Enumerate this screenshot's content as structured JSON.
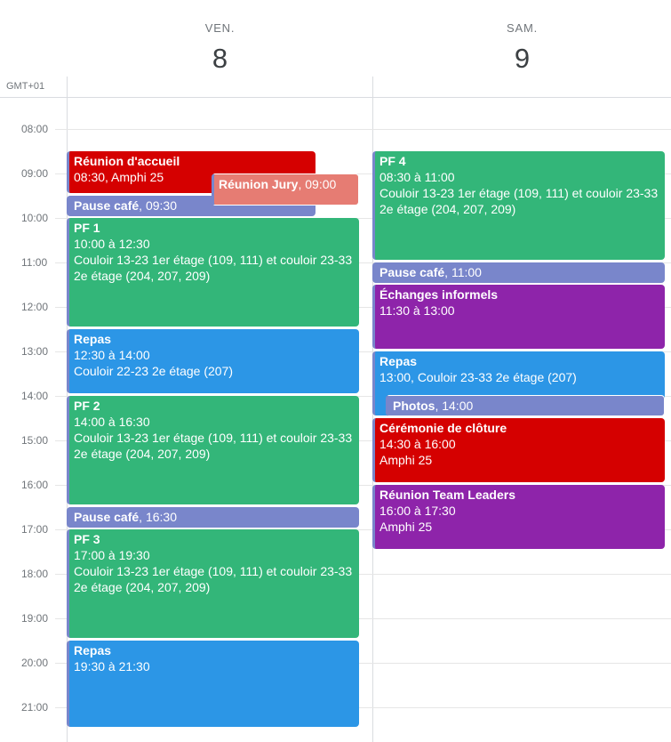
{
  "timezone": "GMT+01",
  "days": [
    {
      "dow": "VEN.",
      "num": "8"
    },
    {
      "dow": "SAM.",
      "num": "9"
    }
  ],
  "hours": [
    "08:00",
    "09:00",
    "10:00",
    "11:00",
    "12:00",
    "13:00",
    "14:00",
    "15:00",
    "16:00",
    "17:00",
    "18:00",
    "19:00",
    "20:00",
    "21:00"
  ],
  "colors": {
    "red": "#d50000",
    "salmon": "#e67c73",
    "lavender": "#7986cb",
    "green": "#33b679",
    "blue": "#039be5",
    "purple": "#8e24aa"
  },
  "events": {
    "accueil": {
      "title": "Réunion d'accueil",
      "line1": "08:30, Amphi 25"
    },
    "jury": {
      "title": "Réunion Jury",
      "time": ", 09:00"
    },
    "pause1": {
      "title": "Pause café",
      "time": ", 09:30"
    },
    "pf1": {
      "title": "PF 1",
      "line1": "10:00 à 12:30",
      "line2": "Couloir 13-23 1er étage (109, 111) et couloir 23-33 2e étage (204, 207, 209)"
    },
    "repas1": {
      "title": "Repas",
      "line1": "12:30 à 14:00",
      "line2": "Couloir 22-23 2e étage (207)"
    },
    "pf2": {
      "title": "PF 2",
      "line1": "14:00 à 16:30",
      "line2": "Couloir 13-23 1er étage (109, 111) et couloir 23-33 2e étage (204, 207, 209)"
    },
    "pause2": {
      "title": "Pause café",
      "time": ", 16:30"
    },
    "pf3": {
      "title": "PF 3",
      "line1": "17:00 à 19:30",
      "line2": "Couloir 13-23 1er étage (109, 111) et couloir 23-33 2e étage (204, 207, 209)"
    },
    "repas2": {
      "title": "Repas",
      "line1": "19:30 à 21:30"
    },
    "pf4": {
      "title": "PF 4",
      "line1": "08:30 à 11:00",
      "line2": "Couloir 13-23 1er étage (109, 111) et couloir 23-33 2e étage (204, 207, 209)"
    },
    "pause3": {
      "title": "Pause café",
      "time": ", 11:00"
    },
    "echanges": {
      "title": "Échanges informels",
      "line1": "11:30 à 13:00"
    },
    "repas3": {
      "title": "Repas",
      "line1": "13:00, Couloir 23-33 2e étage (207)"
    },
    "photos": {
      "title": "Photos",
      "time": ", 14:00"
    },
    "ceremonie": {
      "title": "Cérémonie de clôture",
      "line1": "14:30 à 16:00",
      "line2": "Amphi 25"
    },
    "teamleaders": {
      "title": "Réunion Team Leaders",
      "line1": "16:00 à 17:30",
      "line2": "Amphi 25"
    }
  }
}
